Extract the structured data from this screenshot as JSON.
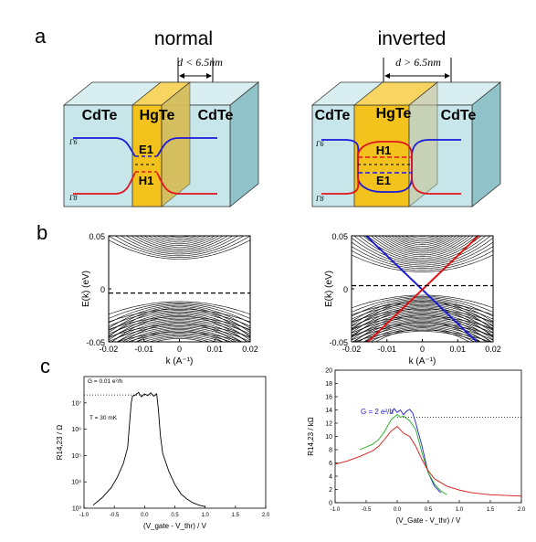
{
  "panel_labels": {
    "a": "a",
    "b": "b",
    "c": "c"
  },
  "panel_a": {
    "normal": {
      "heading": "normal",
      "width_label": "d < 6.5nm",
      "layers": [
        "CdTe",
        "HgTe",
        "CdTe"
      ],
      "band_upper": "E1",
      "band_lower": "H1",
      "gamma6": "Γ6",
      "gamma8": "Γ8"
    },
    "inverted": {
      "heading": "inverted",
      "width_label": "d > 6.5nm",
      "layers": [
        "CdTe",
        "HgTe",
        "CdTe"
      ],
      "band_upper": "H1",
      "band_lower": "E1",
      "gamma6": "Γ6",
      "gamma8": "Γ8"
    },
    "colors": {
      "cdte_front": "#c6e6ea",
      "cdte_side": "#8fc3c9",
      "hgte": "#f3c21c",
      "gamma6": "#1a1adc",
      "gamma8": "#e0141e"
    }
  },
  "chart_data": [
    {
      "type": "line",
      "panel": "b-left",
      "xlabel": "k (A⁻¹)",
      "ylabel": "E(k) (eV)",
      "xlim": [
        -0.02,
        0.02
      ],
      "ylim": [
        -0.05,
        0.05
      ],
      "x_ticks": [
        "-0.02",
        "-0.01",
        "0",
        "0.01",
        "0.02"
      ],
      "y_ticks": [
        "0.05",
        "0",
        "-0.05"
      ],
      "fermi_level": -0.004,
      "conduction_band_min": 0.028,
      "valence_band_max": -0.012
    },
    {
      "type": "line",
      "panel": "b-right",
      "xlabel": "k (A⁻¹)",
      "ylabel": "E(k) (eV)",
      "xlim": [
        -0.02,
        0.02
      ],
      "ylim": [
        -0.05,
        0.05
      ],
      "x_ticks": [
        "-0.02",
        "-0.01",
        "0",
        "0.01",
        "0.02"
      ],
      "y_ticks": [
        "0.05",
        "0",
        "-0.05"
      ],
      "fermi_level": 0.003,
      "dirac_point": [
        0,
        -0.001
      ],
      "edge_state_colors": [
        "#1e1ed2",
        "#dc1414"
      ]
    },
    {
      "type": "line",
      "panel": "c-left",
      "xlabel": "(V_gate - V_thr) / V",
      "ylabel": "R14,23 / Ω",
      "y_scale": "log",
      "xlim": [
        -1.0,
        2.0
      ],
      "ylim": [
        1000,
        100000000
      ],
      "x_ticks": [
        "-1.0",
        "-0.5",
        "0.0",
        "0.5",
        "1.0",
        "1.5",
        "2.0"
      ],
      "y_ticks": [
        "10³",
        "10⁴",
        "10⁵",
        "10⁶",
        "10⁷"
      ],
      "annotations": [
        "G = 0.01 e²/h",
        "T = 30 mK"
      ],
      "series": [
        {
          "x": [
            -0.85,
            -0.7,
            -0.55,
            -0.45,
            -0.35,
            -0.28,
            -0.25,
            -0.22,
            -0.2,
            -0.15,
            -0.1,
            -0.05,
            0.0,
            0.05,
            0.1,
            0.15,
            0.2,
            0.23,
            0.26,
            0.3,
            0.4,
            0.5,
            0.6,
            0.7,
            0.8,
            0.9,
            1.0
          ],
          "y": [
            1300,
            2500,
            6000,
            15000,
            50000,
            200000,
            1500000,
            10000000,
            18000000,
            20000000,
            25000000,
            17000000,
            22000000,
            19000000,
            24000000,
            18000000,
            22000000,
            5000000,
            600000,
            120000,
            25000,
            8000,
            3500,
            2200,
            1600,
            1300,
            1150
          ]
        }
      ]
    },
    {
      "type": "line",
      "panel": "c-right",
      "xlabel": "(V_Gate - V_thr) / V",
      "ylabel": "R14,23 / kΩ",
      "xlim": [
        -1.0,
        2.0
      ],
      "ylim": [
        0,
        20
      ],
      "x_ticks": [
        "-1.0",
        "-0.5",
        "0.0",
        "0.5",
        "1.0",
        "1.5",
        "2.0"
      ],
      "y_ticks": [
        "0",
        "2",
        "4",
        "6",
        "8",
        "10",
        "12",
        "14",
        "16",
        "18",
        "20"
      ],
      "annotations": [
        "G = 2 e²/h"
      ],
      "reference_level": 12.9,
      "series": [
        {
          "color": "#1e1ed2",
          "x": [
            -0.1,
            -0.05,
            0.0,
            0.05,
            0.1,
            0.15,
            0.2,
            0.25,
            0.3,
            0.4,
            0.5,
            0.6,
            0.7
          ],
          "y": [
            13.4,
            14.2,
            13.6,
            14.0,
            13.3,
            13.8,
            14.1,
            13.5,
            12.0,
            8.5,
            4.5,
            2.5,
            1.5
          ]
        },
        {
          "color": "#1eaa1e",
          "x": [
            -0.6,
            -0.4,
            -0.3,
            -0.2,
            -0.1,
            0.0,
            0.05,
            0.1,
            0.15,
            0.2,
            0.3,
            0.4,
            0.5,
            0.6,
            0.7,
            0.8
          ],
          "y": [
            8.0,
            8.8,
            9.5,
            10.8,
            12.5,
            13.3,
            12.9,
            13.1,
            12.7,
            12.4,
            11.0,
            7.5,
            4.5,
            2.8,
            1.8,
            1.2
          ]
        },
        {
          "color": "#dc1414",
          "x": [
            -1.0,
            -0.8,
            -0.6,
            -0.4,
            -0.3,
            -0.2,
            -0.1,
            0.0,
            0.1,
            0.2,
            0.3,
            0.4,
            0.5,
            0.6,
            0.8,
            1.0,
            1.2,
            1.5,
            2.0
          ],
          "y": [
            5.8,
            6.3,
            7.0,
            7.8,
            8.5,
            9.6,
            10.8,
            11.5,
            10.5,
            10.0,
            8.5,
            6.5,
            4.8,
            3.6,
            2.5,
            1.9,
            1.5,
            1.2,
            1.0
          ]
        }
      ]
    }
  ]
}
